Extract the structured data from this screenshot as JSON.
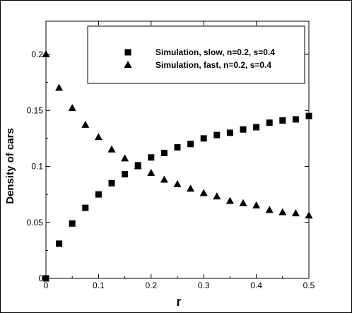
{
  "chart_data": {
    "type": "scatter",
    "xlabel": "r",
    "ylabel": "Density of cars",
    "xlim": [
      0,
      0.5
    ],
    "ylim": [
      0,
      0.2
    ],
    "x_ticks": [
      0,
      0.1,
      0.2,
      0.3,
      0.4,
      0.5
    ],
    "x_tick_labels": [
      "0",
      "0.1",
      "0.2",
      "0.3",
      "0.4",
      "0.5"
    ],
    "y_ticks": [
      0,
      0.05,
      0.1,
      0.15,
      0.2
    ],
    "y_tick_labels": [
      "0",
      "0.05",
      "0.1",
      "0.15",
      "0.2"
    ],
    "legend": "top-right",
    "grid": false,
    "series": [
      {
        "name": "Simulation, slow, n=0.2, s=0.4",
        "marker": "square",
        "x": [
          0,
          0.025,
          0.05,
          0.075,
          0.1,
          0.125,
          0.15,
          0.175,
          0.2,
          0.225,
          0.25,
          0.275,
          0.3,
          0.325,
          0.35,
          0.375,
          0.4,
          0.425,
          0.45,
          0.475,
          0.5
        ],
        "y": [
          0,
          0.031,
          0.049,
          0.063,
          0.075,
          0.085,
          0.093,
          0.101,
          0.108,
          0.112,
          0.117,
          0.12,
          0.125,
          0.128,
          0.13,
          0.133,
          0.135,
          0.139,
          0.141,
          0.142,
          0.145
        ]
      },
      {
        "name": "Simulation, fast, n=0.2, s=0.4",
        "marker": "triangle",
        "x": [
          0,
          0.025,
          0.05,
          0.075,
          0.1,
          0.125,
          0.15,
          0.175,
          0.2,
          0.225,
          0.25,
          0.275,
          0.3,
          0.325,
          0.35,
          0.375,
          0.4,
          0.425,
          0.45,
          0.475,
          0.5
        ],
        "y": [
          0.2,
          0.17,
          0.152,
          0.137,
          0.126,
          0.115,
          0.107,
          0.1,
          0.094,
          0.088,
          0.084,
          0.08,
          0.076,
          0.073,
          0.069,
          0.067,
          0.065,
          0.061,
          0.059,
          0.058,
          0.056
        ]
      }
    ]
  }
}
